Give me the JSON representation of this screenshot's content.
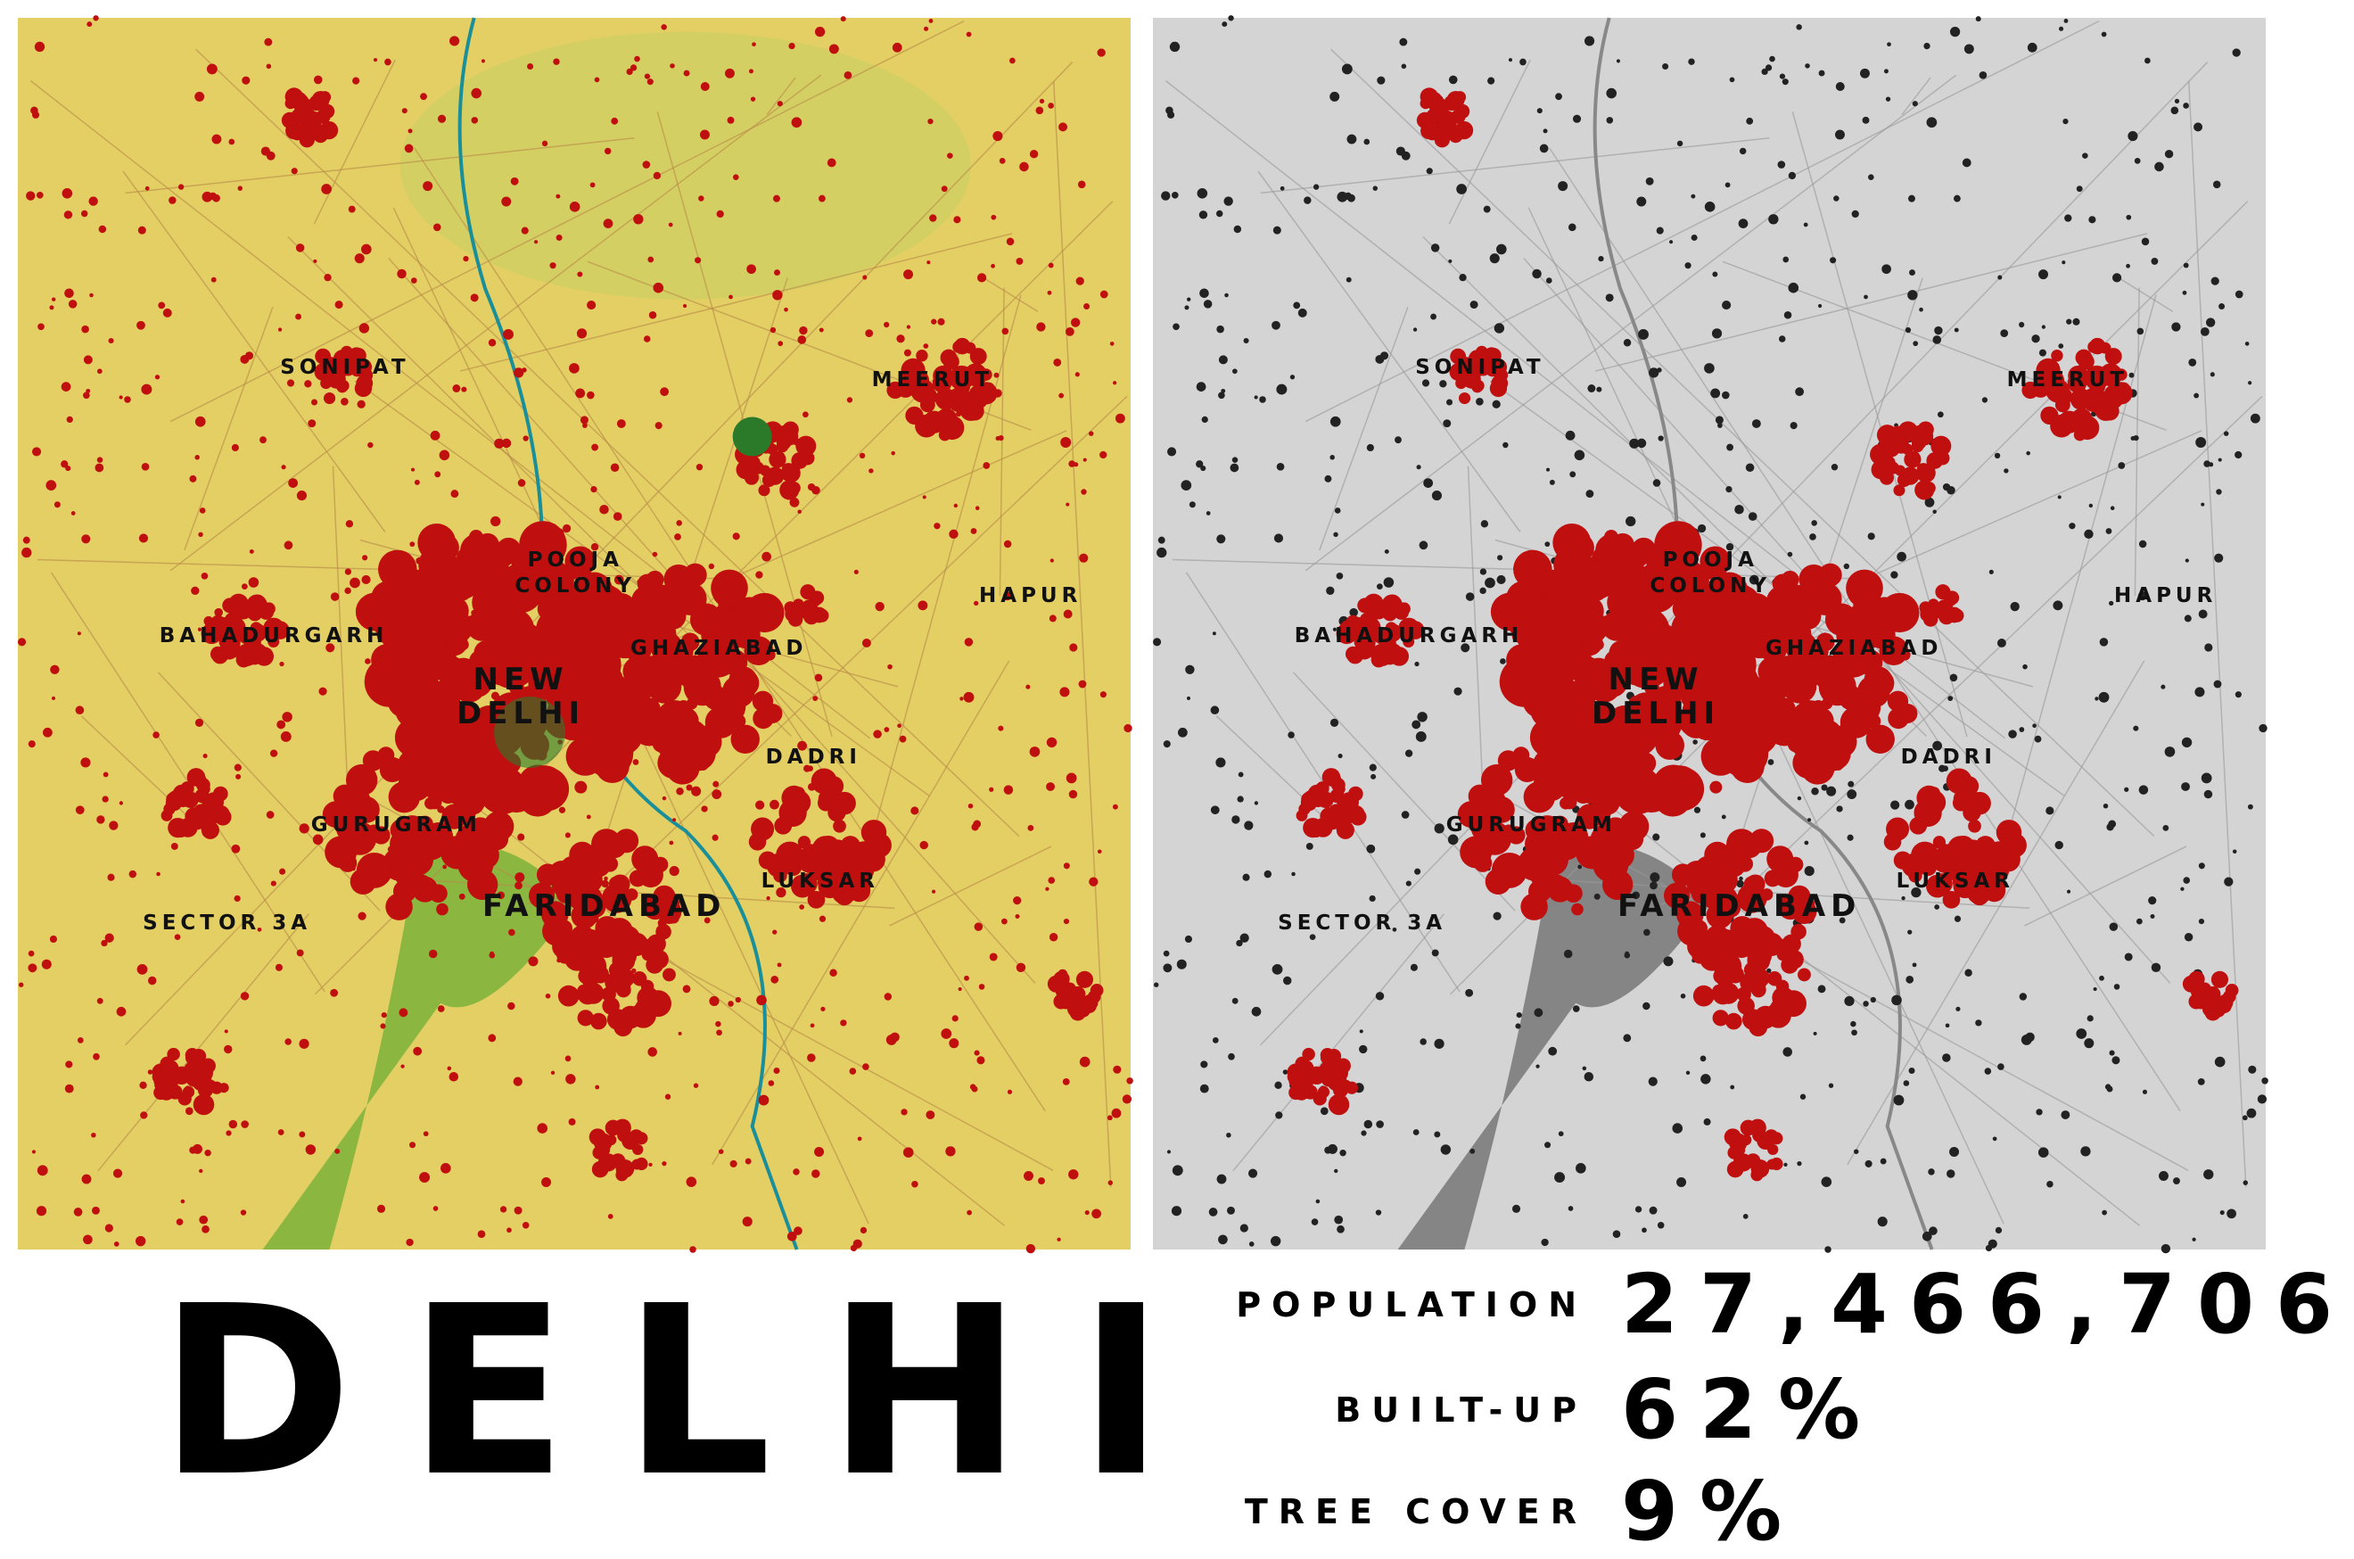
{
  "title": "DELHI",
  "stats": [
    {
      "label": "POPULATION",
      "value": "27,466,706"
    },
    {
      "label": "BUILT-UP",
      "value": "62%"
    },
    {
      "label": "TREE COVER",
      "value": "9%"
    }
  ],
  "map_labels": {
    "sonipat": "SONIPAT",
    "meerut": "MEERUT",
    "pooja": "POOJA",
    "colony": "COLONY",
    "hapur": "HAPUR",
    "bahadurgarh": "BAHADURGARH",
    "ghaziabad": "GHAZIABAD",
    "new": "NEW",
    "delhi": "DELHI",
    "dadri": "DADRI",
    "gurugram": "GURUGRAM",
    "luksar": "LUKSAR",
    "faridabad": "FARIDABAD",
    "sector3a": "SECTOR 3A"
  },
  "colors": {
    "cropland": "#e3cf63",
    "built_up": "#c00f0f",
    "trees": "#2a7a2a",
    "shrub": "#7bb33a",
    "water": "#1a8f9a",
    "gray_bg": "#d4d4d4",
    "gray_dark": "#222222"
  }
}
